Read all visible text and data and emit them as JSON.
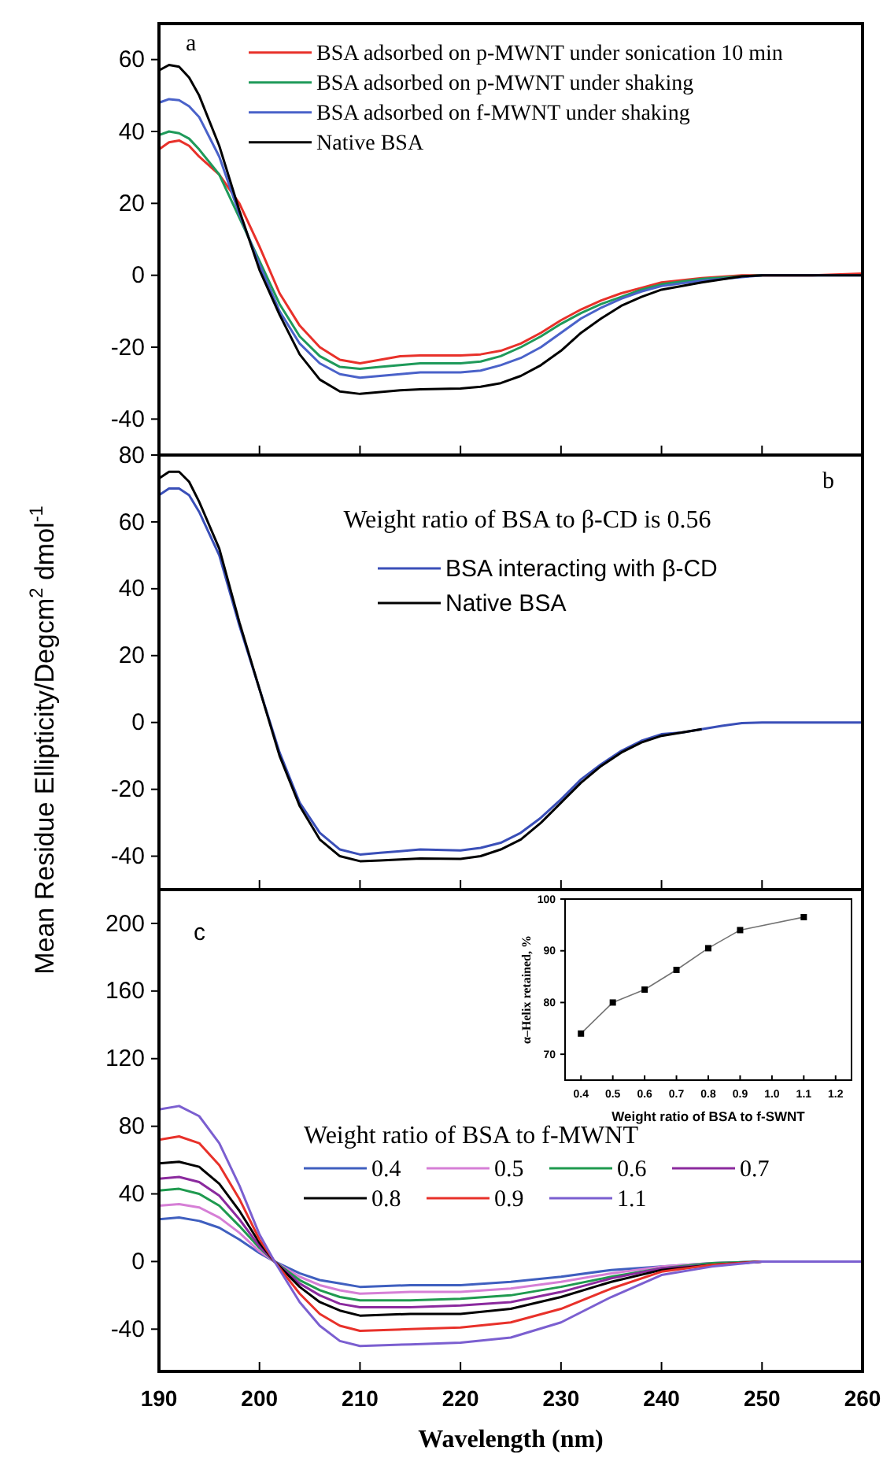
{
  "chart_data": [
    {
      "type": "line",
      "annotations": [
        "a"
      ],
      "legend": "top right",
      "tick_labels": "y",
      "xlim": [
        190,
        260
      ],
      "xticks": [
        190,
        200,
        210,
        220,
        230,
        240,
        250,
        260
      ],
      "ylim": [
        -50,
        70
      ],
      "yticks": [
        -40,
        -20,
        0,
        20,
        40,
        60
      ],
      "x": [
        190,
        191,
        192,
        193,
        194,
        196,
        198,
        200,
        202,
        204,
        206,
        208,
        210,
        212,
        214,
        216,
        220,
        222,
        224,
        226,
        228,
        230,
        232,
        234,
        236,
        238,
        240,
        244,
        248,
        250,
        255,
        260
      ],
      "series": [
        {
          "name": "BSA adsorbed on p-MWNT under sonication 10 min",
          "color": "#e8312a",
          "values": [
            35,
            37,
            37.5,
            36,
            33,
            28,
            20,
            8,
            -5,
            -14,
            -20,
            -23.5,
            -24.5,
            -23.5,
            -22.5,
            -22.3,
            -22.3,
            -22,
            -21,
            -19,
            -16,
            -12.5,
            -9.5,
            -7,
            -5,
            -3.5,
            -2,
            -0.8,
            0,
            0,
            0,
            0.5
          ]
        },
        {
          "name": "BSA adsorbed on p-MWNT under shaking",
          "color": "#1f9a5a",
          "values": [
            39,
            40,
            39.5,
            38,
            35,
            28,
            16,
            4,
            -8,
            -17,
            -22.5,
            -25.5,
            -26,
            -25.5,
            -25,
            -24.5,
            -24.5,
            -24,
            -22.5,
            -20,
            -17,
            -13.5,
            -10.5,
            -8,
            -6,
            -4,
            -2.5,
            -1,
            -0.3,
            0,
            null,
            null
          ]
        },
        {
          "name": "BSA adsorbed on f-MWNT under shaking",
          "color": "#4a62c9",
          "values": [
            48,
            49,
            48.7,
            47,
            44,
            33,
            17,
            3,
            -10,
            -19,
            -24.5,
            -27.5,
            -28.5,
            -28,
            -27.5,
            -27,
            -27,
            -26.5,
            -25,
            -23,
            -20,
            -16,
            -12,
            -9,
            -6.5,
            -4.5,
            -3,
            -1.5,
            -0.5,
            0,
            0,
            0
          ]
        },
        {
          "name": "Native BSA",
          "color": "#000000",
          "values": [
            57,
            58.5,
            58,
            55,
            50,
            36,
            18,
            1.5,
            -11,
            -22,
            -29,
            -32.3,
            -33,
            -32.5,
            -32,
            -31.7,
            -31.5,
            -31,
            -30,
            -28,
            -25,
            -21,
            -16,
            -12,
            -8.5,
            -6,
            -4,
            -2,
            -0.3,
            0,
            0,
            0
          ]
        }
      ]
    },
    {
      "type": "line",
      "ylabel": "Mean Residue Ellipticity/Degcm$^{2}$ dmol$^{-1}$",
      "annotations": [
        "b",
        "Weight ratio of BSA to β-CD is 0.56"
      ],
      "legend": "top right",
      "tick_labels": "y",
      "xlim": [
        190,
        260
      ],
      "xticks": [
        190,
        200,
        210,
        220,
        230,
        240,
        250,
        260
      ],
      "ylim": [
        -50,
        80
      ],
      "yticks": [
        -40,
        -20,
        0,
        20,
        40,
        60,
        80
      ],
      "x": [
        190,
        191,
        192,
        193,
        194,
        196,
        198,
        200,
        202,
        204,
        206,
        208,
        210,
        212,
        214,
        216,
        220,
        222,
        224,
        226,
        228,
        230,
        232,
        234,
        236,
        238,
        240,
        242,
        244,
        246,
        248,
        250,
        260
      ],
      "series": [
        {
          "name": "BSA interacting with β-CD",
          "color": "#3a4fb8",
          "values": [
            68,
            70,
            70,
            68,
            63,
            50,
            29,
            10,
            -9,
            -24,
            -33,
            -38,
            -39.5,
            -39,
            -38.5,
            -38,
            -38.3,
            -37.5,
            -36,
            -33,
            -28.5,
            -23,
            -17,
            -12.5,
            -8.5,
            -5.5,
            -3.5,
            -3,
            -2,
            -1,
            -0.2,
            0,
            0
          ]
        },
        {
          "name": "Native BSA",
          "color": "#000000",
          "values": [
            73,
            75,
            75,
            72,
            66,
            52,
            30,
            10,
            -10,
            -25,
            -35,
            -40,
            -41.5,
            -41.3,
            -41,
            -40.7,
            -40.8,
            -40,
            -38,
            -35,
            -30,
            -24,
            -18,
            -13,
            -9,
            -6,
            -4,
            -3,
            -2,
            null,
            null,
            null,
            null
          ]
        }
      ]
    },
    {
      "type": "line",
      "xlabel": "Wavelength (nm)",
      "annotations": [
        "c"
      ],
      "legend_title": "Weight ratio of BSA to f-MWNT",
      "legend": "center",
      "xlim": [
        190,
        260
      ],
      "xticks": [
        190,
        200,
        210,
        220,
        230,
        240,
        250,
        260
      ],
      "ylim": [
        -65,
        220
      ],
      "yticks": [
        -40,
        0,
        40,
        80,
        120,
        160,
        200
      ],
      "x": [
        190,
        192,
        194,
        196,
        198,
        200,
        201.5,
        204,
        206,
        208,
        210,
        215,
        220,
        225,
        230,
        235,
        240,
        245,
        250,
        260
      ],
      "series": [
        {
          "name": "0.4",
          "color": "#3f5fbf",
          "values": [
            25,
            26,
            24,
            20,
            13,
            5,
            0,
            -7,
            -11,
            -13,
            -15,
            -14,
            -14,
            -12,
            -9,
            -5,
            -3,
            -1,
            0,
            0
          ]
        },
        {
          "name": "0.5",
          "color": "#d67fd6",
          "values": [
            33,
            34,
            32,
            26,
            17,
            6,
            0,
            -9,
            -14,
            -17,
            -19,
            -18,
            -18,
            -16,
            -12,
            -7,
            -3,
            -1,
            0,
            0
          ]
        },
        {
          "name": "0.6",
          "color": "#1f9a4f",
          "values": [
            42,
            43,
            40,
            33,
            21,
            8,
            0,
            -11,
            -17,
            -21,
            -23,
            -23,
            -22,
            -20,
            -15,
            -9,
            -4,
            -1,
            0,
            0
          ]
        },
        {
          "name": "0.7",
          "color": "#8b2a9e",
          "values": [
            49,
            50,
            47,
            39,
            25,
            9,
            0,
            -13,
            -20,
            -25,
            -27,
            -27,
            -26,
            -24,
            -18,
            -10,
            -4,
            -2,
            0,
            0
          ]
        },
        {
          "name": "0.8",
          "color": "#000000",
          "values": [
            58,
            59,
            56,
            46,
            30,
            11,
            0,
            -15,
            -24,
            -29,
            -32,
            -31,
            -31,
            -28,
            -21,
            -12,
            -5,
            -2,
            0,
            0
          ]
        },
        {
          "name": "0.9",
          "color": "#e8312a",
          "values": [
            72,
            74,
            70,
            57,
            37,
            13,
            0,
            -19,
            -31,
            -38,
            -41,
            -40,
            -39,
            -36,
            -28,
            -16,
            -6,
            -2,
            0,
            0
          ]
        },
        {
          "name": "1.1",
          "color": "#7b5fd0",
          "values": [
            90,
            92,
            86,
            70,
            45,
            16,
            0,
            -24,
            -38,
            -47,
            -50,
            -49,
            -48,
            -45,
            -36,
            -21,
            -8,
            -3,
            0,
            0
          ]
        }
      ]
    },
    {
      "type": "line",
      "xlabel": "Weight ratio of BSA to f-SWNT",
      "ylabel": "α–Helix retained, %",
      "marker": "square",
      "xlim": [
        0.35,
        1.25
      ],
      "xticks": [
        {
          "value": 0.4,
          "label": "0.4"
        },
        {
          "value": 0.5,
          "label": "0.5"
        },
        {
          "value": 0.6,
          "label": "0.6"
        },
        {
          "value": 0.7,
          "label": "0.7"
        },
        {
          "value": 0.8,
          "label": "0.8"
        },
        {
          "value": 0.9,
          "label": "0.9"
        },
        {
          "value": 1.0,
          "label": "1.0"
        },
        {
          "value": 1.1,
          "label": "1.1"
        },
        {
          "value": 1.2,
          "label": "1.2"
        }
      ],
      "ylim": [
        65,
        100
      ],
      "yticks": [
        70,
        80,
        90,
        100
      ],
      "x": [
        0.4,
        0.5,
        0.6,
        0.7,
        0.8,
        0.9,
        1.1
      ],
      "series": [
        {
          "color": "#000000",
          "values": [
            74,
            80,
            82.5,
            86.3,
            90.5,
            94,
            96.5
          ]
        }
      ]
    }
  ]
}
